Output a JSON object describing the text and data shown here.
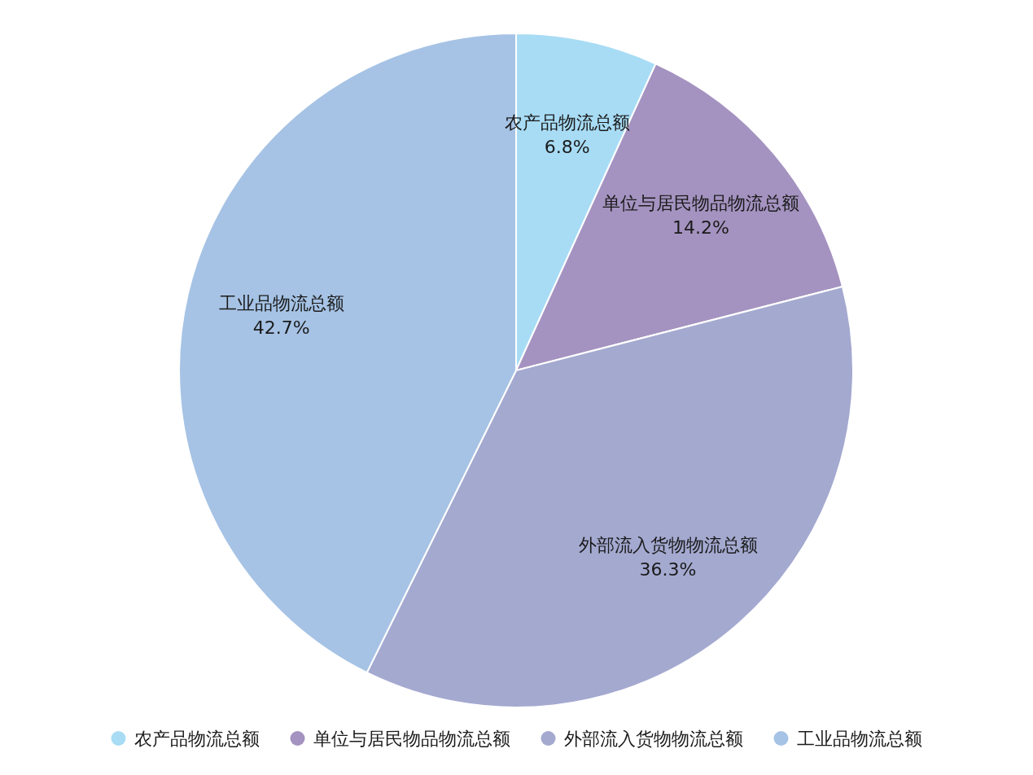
{
  "chart_data": {
    "type": "pie",
    "categories": [
      "农产品物流总额",
      "单位与居民物品物流总额",
      "外部流入货物物流总额",
      "工业品物流总额"
    ],
    "values": [
      6.8,
      14.2,
      36.3,
      42.7
    ],
    "colors": [
      "#a8dcf5",
      "#a493c0",
      "#a4a9d0",
      "#a6c3e5"
    ],
    "value_labels": [
      "6.8%",
      "14.2%",
      "36.3%",
      "42.7%"
    ],
    "legend": "bottom"
  }
}
